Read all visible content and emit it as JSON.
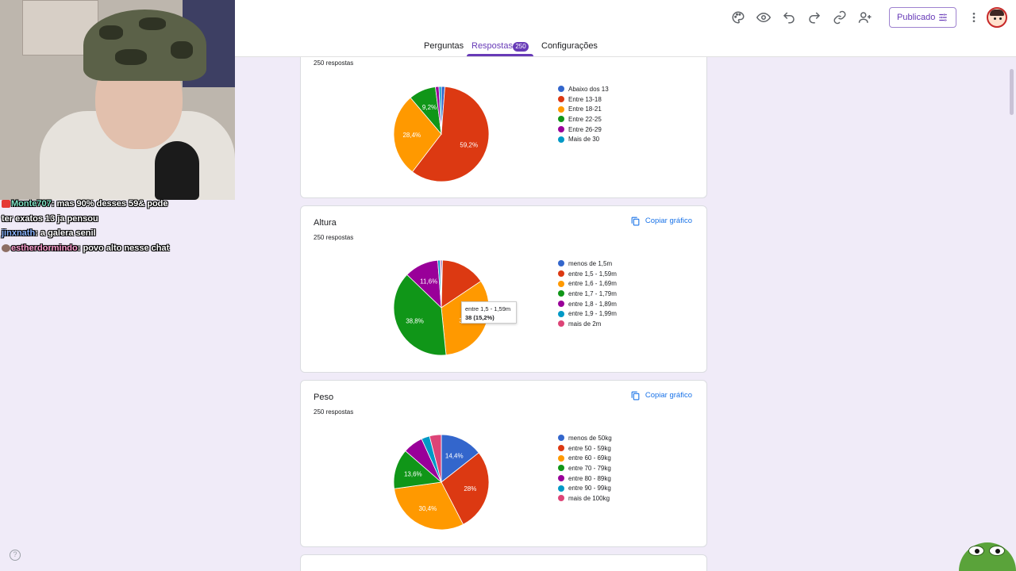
{
  "header": {
    "publish_label": "Publicado",
    "tabs": [
      {
        "label": "Perguntas"
      },
      {
        "label": "Respostas",
        "badge": "250"
      },
      {
        "label": "Configurações"
      }
    ]
  },
  "copy_label": "Copiar gráfico",
  "chart_data": [
    {
      "type": "pie",
      "title": "",
      "response_count": "250 respostas",
      "labels": [
        "Abaixo dos 13",
        "Entre 13-18",
        "Entre 18-21",
        "Entre 22-25",
        "Entre 26-29",
        "Mais de 30"
      ],
      "values": [
        1.2,
        59.2,
        28.4,
        9.2,
        1.2,
        0.8
      ],
      "slice_labels": [
        "",
        "59,2%",
        "28,4%",
        "9,2%",
        "",
        ""
      ],
      "colors": [
        "#3366cc",
        "#dc3912",
        "#ff9900",
        "#109618",
        "#990099",
        "#0099c6"
      ],
      "legend": "right"
    },
    {
      "type": "pie",
      "title": "Altura",
      "response_count": "250 respostas",
      "labels": [
        "menos de 1,5m",
        "entre 1,5 - 1,59m",
        "entre 1,6 - 1,69m",
        "entre 1,7 - 1,79m",
        "entre 1,8 - 1,89m",
        "entre 1,9 - 1,99m",
        "mais de 2m"
      ],
      "values": [
        0.4,
        15.2,
        32.8,
        38.8,
        11.6,
        0.8,
        0.4
      ],
      "slice_labels": [
        "",
        "",
        "32,8%",
        "38,8%",
        "11,6%",
        "",
        ""
      ],
      "colors": [
        "#3366cc",
        "#dc3912",
        "#ff9900",
        "#109618",
        "#990099",
        "#0099c6",
        "#dd4477"
      ],
      "legend": "right",
      "tooltip": {
        "label": "entre 1,5 - 1,59m",
        "value": "38 (15,2%)"
      }
    },
    {
      "type": "pie",
      "title": "Peso",
      "response_count": "250 respostas",
      "labels": [
        "menos de 50kg",
        "entre 50 - 59kg",
        "entre 60 - 69kg",
        "entre 70 - 79kg",
        "entre 80 - 89kg",
        "entre 90 - 99kg",
        "mais de 100kg"
      ],
      "values": [
        14.4,
        28,
        30.4,
        13.6,
        6.8,
        2.8,
        4.0
      ],
      "slice_labels": [
        "14,4%",
        "28%",
        "30,4%",
        "13,6%",
        "",
        "",
        ""
      ],
      "colors": [
        "#3366cc",
        "#dc3912",
        "#ff9900",
        "#109618",
        "#990099",
        "#0099c6",
        "#dd4477"
      ],
      "legend": "right"
    }
  ],
  "chat": [
    {
      "user": "Monte707",
      "message": "mas 90% desses 59& pode",
      "user_color": "#7fe3c6"
    },
    {
      "user": "",
      "message": "ter exatos 13 ja pensou",
      "user_color": "#ffffff"
    },
    {
      "user": "jinxnath",
      "message": "a galera senil",
      "user_color": "#8ab4ff"
    },
    {
      "user": "estherdormindo",
      "message": "povo alto nesse chat",
      "user_color": "#ff9fd0"
    }
  ],
  "help_label": "?"
}
